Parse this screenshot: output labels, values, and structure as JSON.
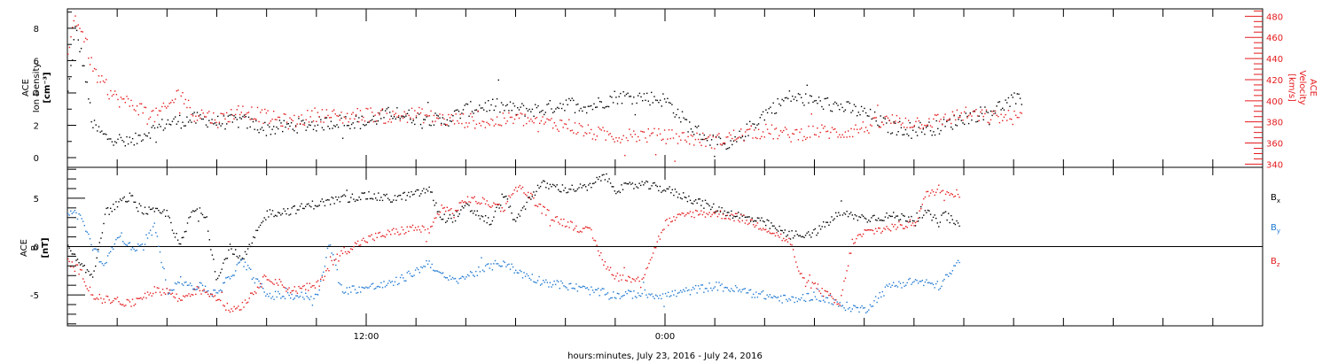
{
  "chart_data": [
    {
      "type": "scatter",
      "panel": "ion-density-velocity",
      "ylabel_lines": [
        "ACE",
        "Ion Density",
        "[cm⁻³]"
      ],
      "ylim": [
        -0.6,
        9.2
      ],
      "yticks": [
        0,
        2,
        4,
        6,
        8
      ],
      "y2label_lines": [
        "ACE",
        "Velocity",
        "[km/s]"
      ],
      "y2lim": [
        337,
        487
      ],
      "y2ticks": [
        340,
        360,
        380,
        400,
        420,
        440,
        460,
        480
      ],
      "x_hours_range": [
        0,
        48
      ],
      "series": [
        {
          "name": "",
          "color": "#000000",
          "axis": "left",
          "keypoints": [
            [
              0,
              4
            ],
            [
              0.3,
              8
            ],
            [
              0.6,
              6
            ],
            [
              1,
              2
            ],
            [
              1.5,
              1.3
            ],
            [
              2,
              1.2
            ],
            [
              2.5,
              0.8
            ],
            [
              3,
              1.5
            ],
            [
              3.5,
              1.8
            ],
            [
              4,
              2.2
            ],
            [
              5,
              2.4
            ],
            [
              5.5,
              2.4
            ],
            [
              6,
              2.2
            ],
            [
              7,
              2.3
            ],
            [
              8,
              1.8
            ],
            [
              9,
              2.0
            ],
            [
              10,
              2.1
            ],
            [
              11,
              2.3
            ],
            [
              12,
              2.2
            ],
            [
              13,
              2.8
            ],
            [
              14,
              2.5
            ],
            [
              14.5,
              2.5
            ],
            [
              15,
              2.2
            ],
            [
              16,
              3.0
            ],
            [
              17,
              3.3
            ],
            [
              18,
              3.0
            ],
            [
              19,
              3.0
            ],
            [
              20,
              3.4
            ],
            [
              21,
              3.2
            ],
            [
              22,
              3.8
            ],
            [
              23,
              3.8
            ],
            [
              24,
              3.6
            ],
            [
              25,
              1.9
            ],
            [
              26,
              1.0
            ],
            [
              26.5,
              0.5
            ],
            [
              27,
              1.3
            ],
            [
              28,
              2.8
            ],
            [
              29,
              3.8
            ],
            [
              30,
              3.5
            ],
            [
              31,
              3.2
            ],
            [
              32,
              2.8
            ],
            [
              33,
              1.9
            ],
            [
              34,
              1.8
            ],
            [
              35,
              1.9
            ],
            [
              36,
              2.5
            ],
            [
              37,
              2.9
            ],
            [
              38,
              3.6
            ],
            [
              38.3,
              3.5
            ]
          ],
          "x_extent": [
            0,
            38.3
          ]
        },
        {
          "name": "",
          "color": "#e41a1c",
          "axis": "right",
          "keypoints": [
            [
              0,
              450
            ],
            [
              0.3,
              480
            ],
            [
              0.7,
              458
            ],
            [
              1,
              430
            ],
            [
              1.5,
              412
            ],
            [
              2,
              402
            ],
            [
              2.5,
              398
            ],
            [
              3,
              392
            ],
            [
              3.5,
              386
            ],
            [
              4,
              394
            ],
            [
              4.5,
              410
            ],
            [
              5,
              388
            ],
            [
              5.5,
              388
            ],
            [
              6,
              382
            ],
            [
              7,
              392
            ],
            [
              8,
              385
            ],
            [
              9,
              380
            ],
            [
              10,
              388
            ],
            [
              11,
              385
            ],
            [
              12,
              388
            ],
            [
              13,
              385
            ],
            [
              14,
              388
            ],
            [
              15,
              383
            ],
            [
              16,
              382
            ],
            [
              17,
              380
            ],
            [
              18,
              384
            ],
            [
              19,
              380
            ],
            [
              20,
              378
            ],
            [
              21,
              370
            ],
            [
              22,
              367
            ],
            [
              23,
              368
            ],
            [
              24,
              367
            ],
            [
              25,
              365
            ],
            [
              26,
              362
            ],
            [
              26.5,
              366
            ],
            [
              27,
              368
            ],
            [
              28,
              372
            ],
            [
              29,
              368
            ],
            [
              30,
              372
            ],
            [
              31,
              370
            ],
            [
              32,
              375
            ],
            [
              33,
              382
            ],
            [
              34,
              380
            ],
            [
              35,
              382
            ],
            [
              36,
              388
            ],
            [
              37,
              385
            ],
            [
              38,
              385
            ],
            [
              38.3,
              384
            ]
          ],
          "x_extent": [
            0,
            38.3
          ]
        }
      ]
    },
    {
      "type": "scatter",
      "panel": "magnetic-field",
      "ylabel_lines": [
        "ACE",
        "B",
        "[nT]"
      ],
      "ylim": [
        -8.2,
        8.2
      ],
      "yticks": [
        -5,
        0,
        5
      ],
      "zero_line": true,
      "x_hours_range": [
        0,
        48
      ],
      "xtick_labels": [
        {
          "hour": 12,
          "label": "12:00"
        },
        {
          "hour": 24,
          "label": "0:00"
        }
      ],
      "xlabel": "hours:minutes, July 23, 2016 - July 24, 2016",
      "legend": [
        {
          "base": "B",
          "sub": "x",
          "color": "#000000"
        },
        {
          "base": "B",
          "sub": "y",
          "color": "#1f78d1"
        },
        {
          "base": "B",
          "sub": "z",
          "color": "#e41a1c"
        }
      ],
      "series": [
        {
          "name": "Bx",
          "color": "#000000",
          "keypoints": [
            [
              0,
              0
            ],
            [
              0.5,
              -2
            ],
            [
              1,
              -3
            ],
            [
              1.5,
              3.5
            ],
            [
              2,
              4.5
            ],
            [
              2.5,
              5.2
            ],
            [
              3,
              3.8
            ],
            [
              3.5,
              3.6
            ],
            [
              4,
              3.5
            ],
            [
              4.5,
              0
            ],
            [
              5,
              3.8
            ],
            [
              5.5,
              3.5
            ],
            [
              6,
              -3.5
            ],
            [
              6.5,
              0
            ],
            [
              7,
              -1.5
            ],
            [
              8,
              3.5
            ],
            [
              9,
              3.8
            ],
            [
              10,
              4.5
            ],
            [
              11,
              5.0
            ],
            [
              12,
              5.3
            ],
            [
              13,
              5.0
            ],
            [
              14,
              5.5
            ],
            [
              14.5,
              6.0
            ],
            [
              15,
              3.0
            ],
            [
              15.5,
              3.0
            ],
            [
              16,
              4.2
            ],
            [
              17,
              2.5
            ],
            [
              17.5,
              5.5
            ],
            [
              18,
              2.5
            ],
            [
              18.5,
              5.0
            ],
            [
              19,
              6.5
            ],
            [
              20,
              6.0
            ],
            [
              21,
              6.2
            ],
            [
              21.5,
              7.5
            ],
            [
              22,
              6.0
            ],
            [
              23,
              6.5
            ],
            [
              24,
              6.0
            ],
            [
              25,
              5.0
            ],
            [
              26,
              4.0
            ],
            [
              27,
              3.2
            ],
            [
              28,
              2.5
            ],
            [
              29,
              1.2
            ],
            [
              30,
              1.5
            ],
            [
              31,
              3.5
            ],
            [
              32,
              3.0
            ],
            [
              33,
              3.2
            ],
            [
              34,
              3.0
            ],
            [
              34.5,
              3.5
            ],
            [
              35,
              2.5
            ],
            [
              35.2,
              3.5
            ],
            [
              35.8,
              2.0
            ]
          ],
          "x_extent": [
            0,
            35.8
          ]
        },
        {
          "name": "By",
          "color": "#1f78d1",
          "keypoints": [
            [
              0,
              3.8
            ],
            [
              0.5,
              3.2
            ],
            [
              1,
              0
            ],
            [
              1.5,
              -2
            ],
            [
              2,
              1.5
            ],
            [
              2.5,
              0
            ],
            [
              3,
              0
            ],
            [
              3.5,
              2.2
            ],
            [
              4,
              -4.5
            ],
            [
              4.5,
              -3.5
            ],
            [
              5,
              -4.0
            ],
            [
              5.5,
              -4.2
            ],
            [
              6,
              -5.0
            ],
            [
              6.5,
              -3.0
            ],
            [
              7,
              -1.5
            ],
            [
              8,
              -5.0
            ],
            [
              9,
              -5.0
            ],
            [
              10,
              -5.2
            ],
            [
              10.5,
              0.5
            ],
            [
              11,
              -4.5
            ],
            [
              12,
              -4.2
            ],
            [
              13,
              -3.8
            ],
            [
              14,
              -2.5
            ],
            [
              14.5,
              -1.5
            ],
            [
              15,
              -3.0
            ],
            [
              15.5,
              -3.5
            ],
            [
              16,
              -3.0
            ],
            [
              17,
              -2.0
            ],
            [
              17.5,
              -1.5
            ],
            [
              18,
              -2.5
            ],
            [
              19,
              -3.5
            ],
            [
              20,
              -4.0
            ],
            [
              21,
              -4.5
            ],
            [
              22,
              -5.0
            ],
            [
              23,
              -4.8
            ],
            [
              24,
              -5.0
            ],
            [
              25,
              -4.5
            ],
            [
              26,
              -4.0
            ],
            [
              27,
              -4.5
            ],
            [
              28,
              -5.0
            ],
            [
              29,
              -5.5
            ],
            [
              30,
              -5.0
            ],
            [
              31,
              -6.0
            ],
            [
              32,
              -6.5
            ],
            [
              33,
              -4.0
            ],
            [
              34,
              -3.5
            ],
            [
              35,
              -4.0
            ],
            [
              35.5,
              -2.5
            ],
            [
              35.8,
              -1.5
            ]
          ],
          "x_extent": [
            0,
            35.8
          ]
        },
        {
          "name": "Bz",
          "color": "#e41a1c",
          "keypoints": [
            [
              0,
              -1.5
            ],
            [
              0.5,
              -2.5
            ],
            [
              1,
              -5.0
            ],
            [
              1.5,
              -5.5
            ],
            [
              2,
              -5.5
            ],
            [
              2.5,
              -6.0
            ],
            [
              3,
              -5.0
            ],
            [
              3.5,
              -4.5
            ],
            [
              4,
              -4.5
            ],
            [
              4.5,
              -5.5
            ],
            [
              5,
              -4.5
            ],
            [
              5.5,
              -4.5
            ],
            [
              6,
              -5.2
            ],
            [
              6.5,
              -6.5
            ],
            [
              7,
              -6.0
            ],
            [
              8,
              -3.0
            ],
            [
              9,
              -4.5
            ],
            [
              10,
              -4.0
            ],
            [
              10.5,
              -2.0
            ],
            [
              11,
              -0.5
            ],
            [
              12,
              0.8
            ],
            [
              13,
              1.5
            ],
            [
              14,
              2.0
            ],
            [
              14.5,
              1.5
            ],
            [
              15,
              4.2
            ],
            [
              15.5,
              3.5
            ],
            [
              16,
              5.0
            ],
            [
              17,
              4.5
            ],
            [
              17.5,
              4.0
            ],
            [
              18,
              6.3
            ],
            [
              18.5,
              5.5
            ],
            [
              19,
              4.0
            ],
            [
              19.5,
              3.0
            ],
            [
              20,
              2.5
            ],
            [
              21,
              1.5
            ],
            [
              21.5,
              -1.5
            ],
            [
              22,
              -3.0
            ],
            [
              23,
              -3.5
            ],
            [
              24,
              2.5
            ],
            [
              25,
              3.5
            ],
            [
              26,
              3.5
            ],
            [
              27,
              3.0
            ],
            [
              27.5,
              2.5
            ],
            [
              28,
              2.0
            ],
            [
              29,
              0.5
            ],
            [
              29.5,
              -3.5
            ],
            [
              30,
              -4.0
            ],
            [
              31,
              -6.0
            ],
            [
              31.5,
              0.5
            ],
            [
              32,
              1.5
            ],
            [
              33,
              2.0
            ],
            [
              34,
              2.5
            ],
            [
              34.5,
              5.5
            ],
            [
              35,
              6.0
            ],
            [
              35.8,
              5.5
            ]
          ],
          "x_extent": [
            0,
            35.8
          ]
        }
      ]
    }
  ]
}
